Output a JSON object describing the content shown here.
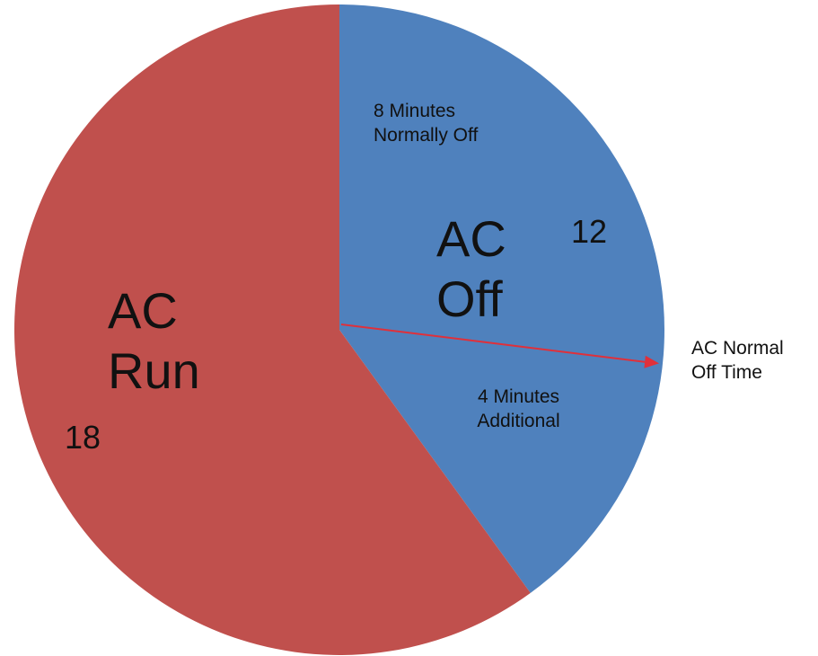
{
  "chart_data": {
    "type": "pie",
    "title": "",
    "slices": [
      {
        "name": "AC Off",
        "value": 12,
        "value_label": "12",
        "color": "#4f81bd"
      },
      {
        "name": "AC Run",
        "value": 18,
        "value_label": "18",
        "color": "#c0504d"
      }
    ],
    "labels": {
      "off_line1": "AC",
      "off_line2": "Off",
      "run_line1": "AC",
      "run_line2": "Run"
    },
    "annotations": {
      "normally_off": "8 Minutes Normally Off",
      "additional": "4 Minutes Additional",
      "arrow_label": "AC Normal Off Time"
    },
    "sub_segments": [
      {
        "name": "8 Minutes Normally Off",
        "value": 8
      },
      {
        "name": "4 Minutes Additional",
        "value": 4
      }
    ],
    "arrow_color": "#e0303a"
  }
}
